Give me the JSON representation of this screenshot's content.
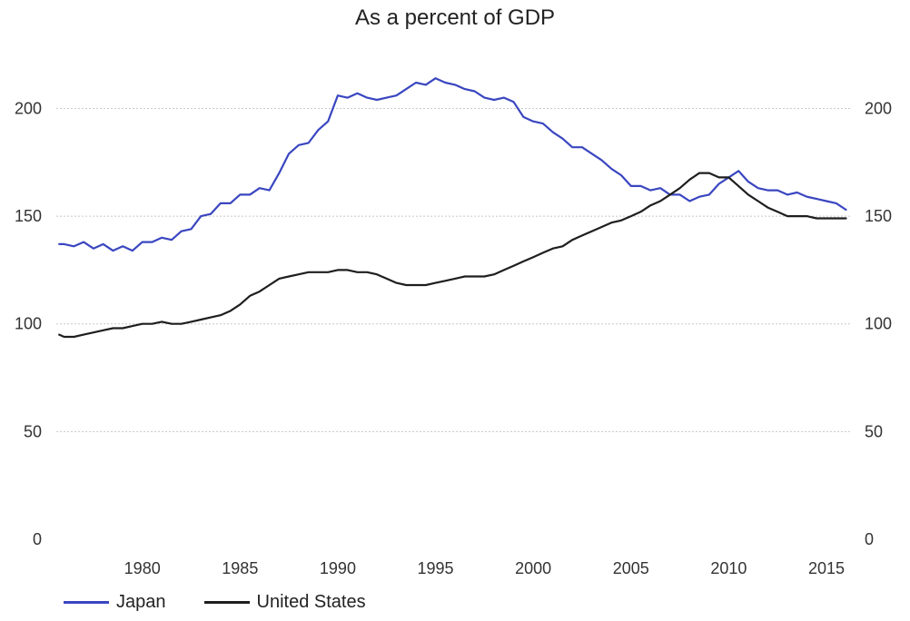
{
  "chart_data": {
    "type": "line",
    "title": "As a percent of GDP",
    "xlabel": "",
    "ylabel": "",
    "xlim": [
      1975.6,
      2016.3
    ],
    "ylim": [
      0,
      220
    ],
    "x_ticks": [
      1980,
      1985,
      1990,
      1995,
      2000,
      2005,
      2010,
      2015
    ],
    "y_ticks": [
      0,
      50,
      100,
      150,
      200
    ],
    "grid": "horizontal",
    "legend_position": "bottom-left",
    "series": [
      {
        "name": "Japan",
        "color": "#3a46c0",
        "x": [
          1975.75,
          1976.0,
          1976.5,
          1977.0,
          1977.5,
          1978.0,
          1978.5,
          1979.0,
          1979.5,
          1980.0,
          1980.5,
          1981.0,
          1981.5,
          1982.0,
          1982.5,
          1983.0,
          1983.5,
          1984.0,
          1984.5,
          1985.0,
          1985.5,
          1986.0,
          1986.5,
          1987.0,
          1987.5,
          1988.0,
          1988.5,
          1989.0,
          1989.5,
          1990.0,
          1990.5,
          1991.0,
          1991.5,
          1992.0,
          1992.5,
          1993.0,
          1993.5,
          1994.0,
          1994.5,
          1995.0,
          1995.5,
          1996.0,
          1996.5,
          1997.0,
          1997.5,
          1998.0,
          1998.5,
          1999.0,
          1999.5,
          2000.0,
          2000.5,
          2001.0,
          2001.5,
          2002.0,
          2002.5,
          2003.0,
          2003.5,
          2004.0,
          2004.5,
          2005.0,
          2005.5,
          2006.0,
          2006.5,
          2007.0,
          2007.5,
          2008.0,
          2008.5,
          2009.0,
          2009.5,
          2010.0,
          2010.5,
          2011.0,
          2011.5,
          2012.0,
          2012.5,
          2013.0,
          2013.5,
          2014.0,
          2014.5,
          2015.0,
          2015.5,
          2016.0
        ],
        "values": [
          137,
          137,
          136,
          138,
          135,
          137,
          134,
          136,
          134,
          138,
          138,
          140,
          139,
          143,
          144,
          150,
          151,
          156,
          156,
          160,
          160,
          163,
          162,
          170,
          179,
          183,
          184,
          190,
          194,
          206,
          205,
          207,
          205,
          204,
          205,
          206,
          209,
          212,
          211,
          214,
          212,
          211,
          209,
          208,
          205,
          204,
          205,
          203,
          196,
          194,
          193,
          189,
          186,
          182,
          182,
          179,
          176,
          172,
          169,
          164,
          164,
          162,
          163,
          160,
          160,
          157,
          159,
          160,
          165,
          168,
          171,
          166,
          163,
          162,
          162,
          160,
          161,
          159,
          158,
          157,
          156,
          153
        ]
      },
      {
        "name": "United States",
        "color": "#1e1e1e",
        "x": [
          1975.75,
          1976.0,
          1976.5,
          1977.0,
          1977.5,
          1978.0,
          1978.5,
          1979.0,
          1979.5,
          1980.0,
          1980.5,
          1981.0,
          1981.5,
          1982.0,
          1982.5,
          1983.0,
          1983.5,
          1984.0,
          1984.5,
          1985.0,
          1985.5,
          1986.0,
          1986.5,
          1987.0,
          1987.5,
          1988.0,
          1988.5,
          1989.0,
          1989.5,
          1990.0,
          1990.5,
          1991.0,
          1991.5,
          1992.0,
          1992.5,
          1993.0,
          1993.5,
          1994.0,
          1994.5,
          1995.0,
          1995.5,
          1996.0,
          1996.5,
          1997.0,
          1997.5,
          1998.0,
          1998.5,
          1999.0,
          1999.5,
          2000.0,
          2000.5,
          2001.0,
          2001.5,
          2002.0,
          2002.5,
          2003.0,
          2003.5,
          2004.0,
          2004.5,
          2005.0,
          2005.5,
          2006.0,
          2006.5,
          2007.0,
          2007.5,
          2008.0,
          2008.5,
          2009.0,
          2009.5,
          2010.0,
          2010.5,
          2011.0,
          2011.5,
          2012.0,
          2012.5,
          2013.0,
          2013.5,
          2014.0,
          2014.5,
          2015.0,
          2015.5,
          2016.0
        ],
        "values": [
          95,
          94,
          94,
          95,
          96,
          97,
          98,
          98,
          99,
          100,
          100,
          101,
          100,
          100,
          101,
          102,
          103,
          104,
          106,
          109,
          113,
          115,
          118,
          121,
          122,
          123,
          124,
          124,
          124,
          125,
          125,
          124,
          124,
          123,
          121,
          119,
          118,
          118,
          118,
          119,
          120,
          121,
          122,
          122,
          122,
          123,
          125,
          127,
          129,
          131,
          133,
          135,
          136,
          139,
          141,
          143,
          145,
          147,
          148,
          150,
          152,
          155,
          157,
          160,
          163,
          167,
          170,
          170,
          168,
          168,
          164,
          160,
          157,
          154,
          152,
          150,
          150,
          150,
          149,
          149,
          149,
          149
        ]
      }
    ]
  }
}
